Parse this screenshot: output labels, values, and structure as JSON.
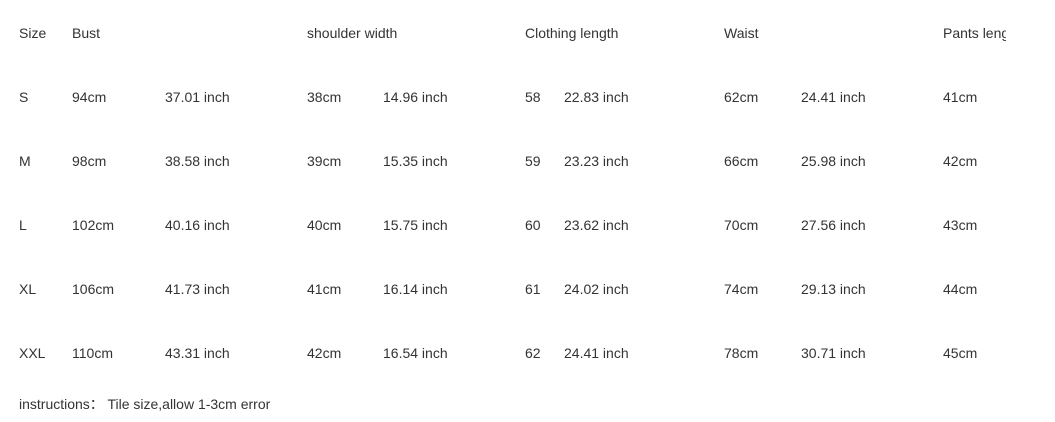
{
  "headers": [
    "Size",
    "Bust",
    "",
    "shoulder width",
    "",
    "Clothing length",
    "",
    "Waist",
    "",
    "Pants length"
  ],
  "rows": [
    [
      "S",
      "94cm",
      "37.01 inch",
      "38cm",
      "14.96 inch",
      "58",
      "22.83 inch",
      "62cm",
      "24.41 inch",
      "41cm"
    ],
    [
      "M",
      "98cm",
      "38.58 inch",
      "39cm",
      "15.35 inch",
      "59",
      "23.23 inch",
      "66cm",
      "25.98 inch",
      "42cm"
    ],
    [
      "L",
      "102cm",
      "40.16 inch",
      "40cm",
      "15.75 inch",
      "60",
      "23.62 inch",
      "70cm",
      "27.56 inch",
      "43cm"
    ],
    [
      "XL",
      "106cm",
      "41.73 inch",
      "41cm",
      "16.14 inch",
      "61",
      "24.02 inch",
      "74cm",
      "29.13 inch",
      "44cm"
    ],
    [
      "XXL",
      "110cm",
      "43.31 inch",
      "42cm",
      "16.54 inch",
      "62",
      "24.41 inch",
      "78cm",
      "30.71 inch",
      "45cm"
    ]
  ],
  "instructions": "instructions： Tile size,allow 1-3cm error",
  "colors": {
    "text": "#333333",
    "background": "#ffffff"
  }
}
